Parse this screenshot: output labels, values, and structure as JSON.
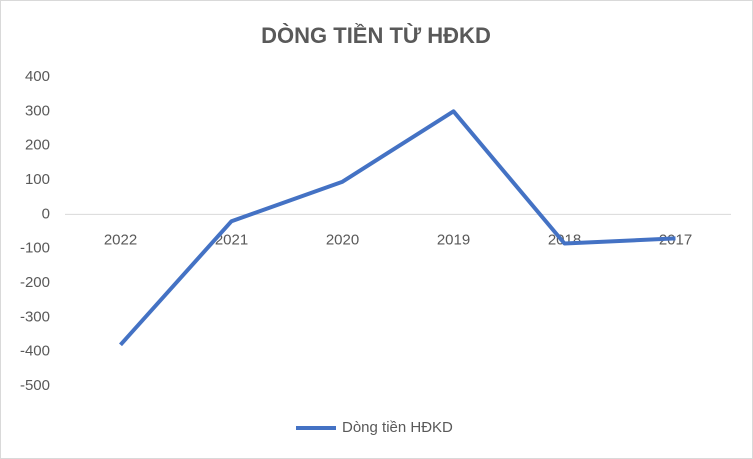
{
  "chart_data": {
    "type": "line",
    "title": "DÒNG TIỀN TỪ HĐKD",
    "categories": [
      "2022",
      "2021",
      "2020",
      "2019",
      "2018",
      "2017"
    ],
    "series": [
      {
        "name": "Dòng tiền HĐKD",
        "color": "#4472c4",
        "values": [
          -380,
          -20,
          95,
          300,
          -85,
          -70
        ]
      }
    ],
    "ylim": [
      -500,
      400
    ],
    "yticks": [
      400,
      300,
      200,
      100,
      0,
      -100,
      -200,
      -300,
      -400,
      -500
    ],
    "grid": false,
    "legend": "bottom"
  }
}
